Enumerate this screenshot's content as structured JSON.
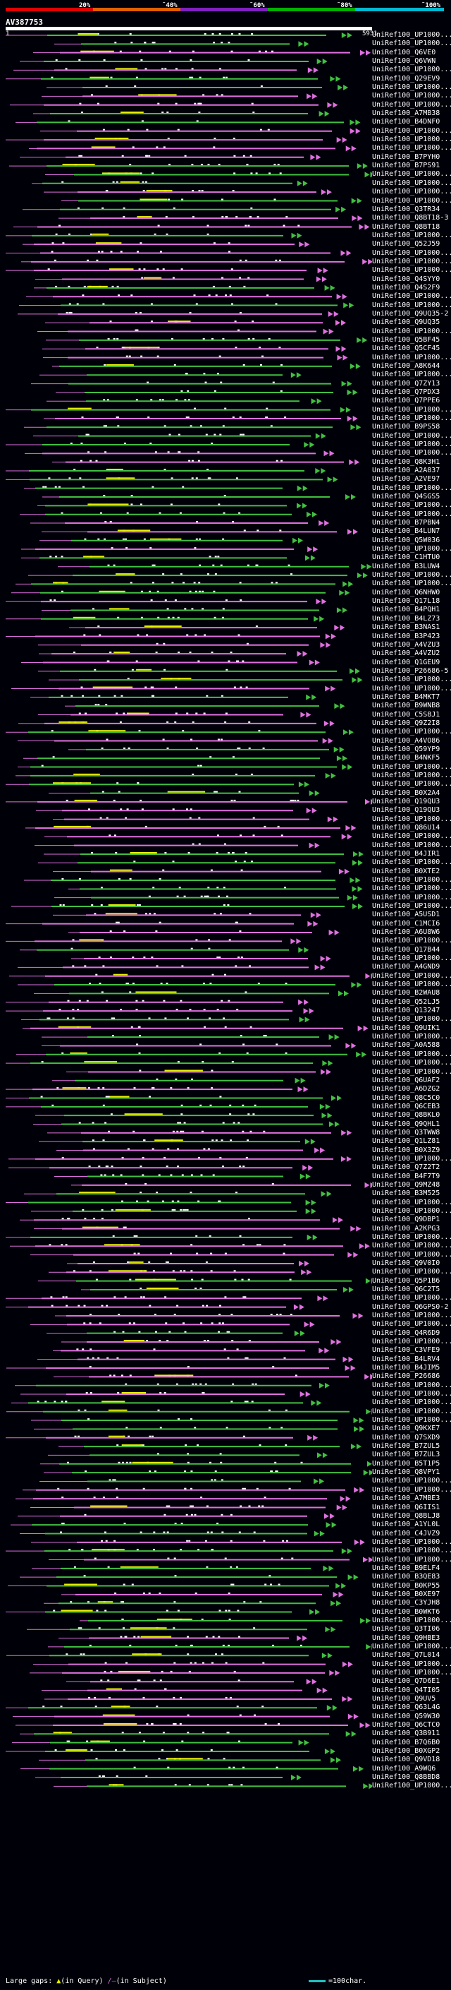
{
  "legend": {
    "labels": [
      "20%",
      "˜40%",
      "˜60%",
      "˜80%",
      "˜100%"
    ],
    "colors": [
      "#e00000",
      "#e06000",
      "#8020c0",
      "#00b000",
      "#00b8d0"
    ]
  },
  "query": {
    "name": "AV387753",
    "tick_start": "1",
    "tick_end": "5931"
  },
  "colors": {
    "magenta": "#e070e0",
    "green": "#40c040",
    "yellow": "#e8f000",
    "white": "#ffffff",
    "background": "#000008"
  },
  "hits": [
    "UniRef100_UP1000...",
    "UniRef100_UP1000...",
    "UniRef100_Q6VE0",
    "UniRef100_Q6VWN",
    "UniRef100_UP1000...",
    "UniRef100_Q29EV9",
    "UniRef100_UP1000...",
    "UniRef100_UP1000...",
    "UniRef100_UP1000...",
    "UniRef100_A7MB38",
    "UniRef100_B4DNF0",
    "UniRef100_UP1000...",
    "UniRef100_UP1000...",
    "UniRef100_UP1000...",
    "UniRef100_B7PYH0",
    "UniRef100_B7PS91",
    "UniRef100_UP1000...",
    "UniRef100_UP1000...",
    "UniRef100_UP1000...",
    "UniRef100_UP1000...",
    "UniRef100_Q3TR34",
    "UniRef100_Q8BT18-3",
    "UniRef100_Q8BT18",
    "UniRef100_UP1000...",
    "UniRef100_Q52J59",
    "UniRef100_UP1000...",
    "UniRef100_UP1000...",
    "UniRef100_UP1000...",
    "UniRef100_Q4SYY0",
    "UniRef100_Q4S2F9",
    "UniRef100_UP1000...",
    "UniRef100_UP1000...",
    "UniRef100_Q9UQ35-2",
    "UniRef100_Q9UQ35",
    "UniRef100_UP1000...",
    "UniRef100_Q5BF45",
    "UniRef100_Q5CF45",
    "UniRef100_UP1000...",
    "UniRef100_A8K644",
    "UniRef100_UP1000...",
    "UniRef100_Q7ZY13",
    "UniRef100_Q7PDX3",
    "UniRef100_Q7PPE6",
    "UniRef100_UP1000...",
    "UniRef100_UP1000...",
    "UniRef100_B9PS58",
    "UniRef100_UP1000...",
    "UniRef100_UP1000...",
    "UniRef100_UP1000...",
    "UniRef100_Q8K3H1",
    "UniRef100_A2A837",
    "UniRef100_A2VE97",
    "UniRef100_UP1000...",
    "UniRef100_Q4SGS5",
    "UniRef100_UP1000...",
    "UniRef100_UP1000...",
    "UniRef100_B7PBN4",
    "UniRef100_B4LUN7",
    "UniRef100_Q5W036",
    "UniRef100_UP1000...",
    "UniRef100_C1HTU0",
    "UniRef100_B3LUW4",
    "UniRef100_UP1000...",
    "UniRef100_UP1000...",
    "UniRef100_Q6NHW0",
    "UniRef100_Q17L18",
    "UniRef100_B4PQH1",
    "UniRef100_B4LZ73",
    "UniRef100_B3NAS1",
    "UniRef100_B3P423",
    "UniRef100_A4VZU3",
    "UniRef100_A4VZU2",
    "UniRef100_Q1GEU9",
    "UniRef100_P26686-5",
    "UniRef100_UP1000...",
    "UniRef100_UP1000...",
    "UniRef100_B4MKT7",
    "UniRef100_B9WNB8",
    "UniRef100_C5S8J1",
    "UniRef100_Q9Z2I8",
    "UniRef100_UP1000...",
    "UniRef100_A4VO86",
    "UniRef100_Q59YP9",
    "UniRef100_B4NKF5",
    "UniRef100_UP1000...",
    "UniRef100_UP1000...",
    "UniRef100_UP1000...",
    "UniRef100_B0X2A4",
    "UniRef100_Q19QU3",
    "UniRef100_Q19QU3",
    "UniRef100_UP1000...",
    "UniRef100_Q86U14",
    "UniRef100_UP1000...",
    "UniRef100_UP1000...",
    "UniRef100_B4JIR1",
    "UniRef100_UP1000...",
    "UniRef100_B0XTE2",
    "UniRef100_UP1000...",
    "UniRef100_UP1000...",
    "UniRef100_UP1000...",
    "UniRef100_UP1000...",
    "UniRef100_A5USD1",
    "UniRef100_C1MCI6",
    "UniRef100_A6U8W6",
    "UniRef100_UP1000...",
    "UniRef100_Q17B44",
    "UniRef100_UP1000...",
    "UniRef100_A4GND9",
    "UniRef100_UP1000...",
    "UniRef100_UP1000...",
    "UniRef100_B2WAU8",
    "UniRef100_Q52LJ5",
    "UniRef100_Q13247",
    "UniRef100_UP1000...",
    "UniRef100_Q9UIK1",
    "UniRef100_UP1000...",
    "UniRef100_A0A588",
    "UniRef100_UP1000...",
    "UniRef100_UP1000...",
    "UniRef100_UP1000...",
    "UniRef100_Q6UAF2",
    "UniRef100_A6DZG2",
    "UniRef100_Q8C5C0",
    "UniRef100_Q6CEB3",
    "UniRef100_Q8BKL0",
    "UniRef100_Q9QHL1",
    "UniRef100_Q3TWW8",
    "UniRef100_Q1LZ81",
    "UniRef100_B0X3Z9",
    "UniRef100_UP1000...",
    "UniRef100_Q7Z2T2",
    "UniRef100_B4F7T9",
    "UniRef100_Q9MZ48",
    "UniRef100_B3M525",
    "UniRef100_UP1000...",
    "UniRef100_UP1000...",
    "UniRef100_Q9DBP1",
    "UniRef100_A2KPG3",
    "UniRef100_UP1000...",
    "UniRef100_UP1000...",
    "UniRef100_UP1000...",
    "UniRef100_Q9V0I0",
    "UniRef100_UP1000...",
    "UniRef100_Q5P1B6",
    "UniRef100_Q6C2T5",
    "UniRef100_UP1000...",
    "UniRef100_Q6GPS0-2",
    "UniRef100_UP1000...",
    "UniRef100_UP1000...",
    "UniRef100_Q4R6D9",
    "UniRef100_UP1000...",
    "UniRef100_C3VFE9",
    "UniRef100_B4LRV4",
    "UniRef100_B4JIM5",
    "UniRef100_P26686",
    "UniRef100_UP1000...",
    "UniRef100_UP1000...",
    "UniRef100_UP1000...",
    "UniRef100_UP1000...",
    "UniRef100_UP1000...",
    "UniRef100_Q9KXE7",
    "UniRef100_Q7SXD9",
    "UniRef100_B7ZUL5",
    "UniRef100_B7ZUL3",
    "UniRef100_B5T1P5",
    "UniRef100_Q8VPY1",
    "UniRef100_UP1000...",
    "UniRef100_UP1000...",
    "UniRef100_A7MBE3",
    "UniRef100_Q6IIS1",
    "UniRef100_Q8BLJ8",
    "UniRef100_A1YL0L",
    "UniRef100_C4JVZ9",
    "UniRef100_UP1000...",
    "UniRef100_UP1000...",
    "UniRef100_UP1000...",
    "UniRef100_B9ELF4",
    "UniRef100_B3QE83",
    "UniRef100_B0KP55",
    "UniRef100_B0XE97",
    "UniRef100_C3YJH8",
    "UniRef100_B0WKT6",
    "UniRef100_UP1000...",
    "UniRef100_Q3TI06",
    "UniRef100_Q9HBE3",
    "UniRef100_UP1000...",
    "UniRef100_Q7L014",
    "UniRef100_UP1000...",
    "UniRef100_UP1000...",
    "UniRef100_Q7D6E1",
    "UniRef100_Q4TI05",
    "UniRef100_Q9UV5",
    "UniRef100_Q63L4G",
    "UniRef100_Q59W30",
    "UniRef100_Q6CTC0",
    "UniRef100_Q3B911",
    "UniRef100_B7Q6B0",
    "UniRef100_B0XGP2",
    "UniRef100_Q9VD18",
    "UniRef100_A9WQ6",
    "UniRef100_Q8BBD8",
    "UniRef100_UP1000..."
  ],
  "footer": {
    "large_gaps_label": "Large gaps:",
    "query_gap_symbol": "▲",
    "query_gap_text": "(in Query)",
    "subject_gap_symbol": "/–",
    "subject_gap_text": "(in Subject)",
    "scale_text": "=100char."
  }
}
